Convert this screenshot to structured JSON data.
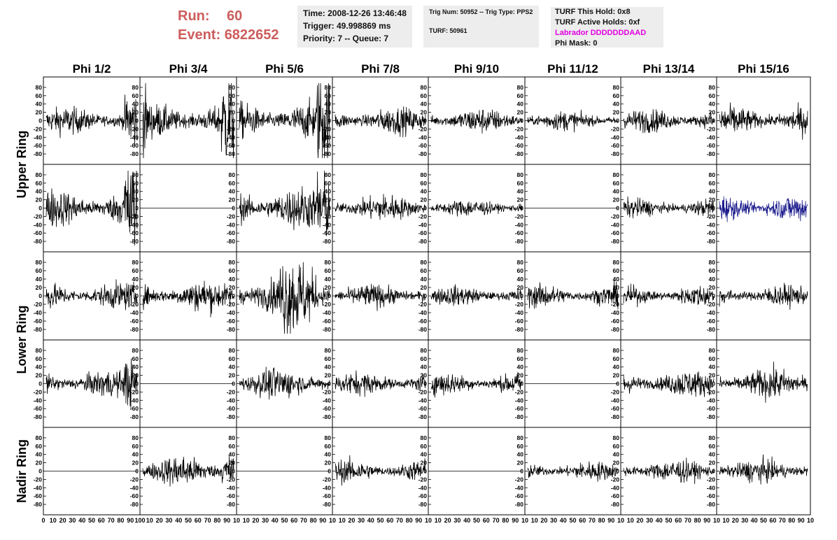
{
  "header": {
    "run_label": "Run:",
    "run_value": "60",
    "event_label": "Event:",
    "event_value": "6822652",
    "time": "Time: 2008-12-26 13:46:48",
    "trigger": "Trigger: 49.998869 ms",
    "priority": "Priority: 7 -- Queue: 7",
    "trig_num": "Trig Num: 50952 -- Trig Type: PPS2",
    "turf": "TURF: 50961",
    "turf_this_hold": "TURF This Hold: 0x8",
    "turf_active_holds": "TURF Active Holds: 0xf",
    "labrador": "Labrador DDDDDDDAAD",
    "phi_mask": "Phi Mask: 0"
  },
  "colors": {
    "run_text": "#cd5c5c",
    "labrador_text": "#e000e0",
    "trace": "#000000",
    "highlight_trace": "#1a1a8c",
    "info_bg": "#ededed"
  },
  "chart_data": {
    "type": "line",
    "columns": [
      "Phi 1/2",
      "Phi 3/4",
      "Phi 5/6",
      "Phi 7/8",
      "Phi 9/10",
      "Phi 11/12",
      "Phi 13/14",
      "Phi 15/16"
    ],
    "ring_labels": [
      "Upper Ring",
      "Lower Ring",
      "Nadir Ring"
    ],
    "ring_rows": [
      [
        0,
        1
      ],
      [
        2,
        3
      ],
      [
        4
      ]
    ],
    "xlim": [
      0,
      100
    ],
    "ylim": [
      -95,
      95
    ],
    "y_ticks": [
      80,
      60,
      40,
      20,
      0,
      -20,
      -40,
      -60,
      -80
    ],
    "x_ticks_first": [
      "0",
      "10",
      "20",
      "30",
      "40",
      "50",
      "60",
      "70",
      "80",
      "90",
      "100"
    ],
    "x_ticks_other": [
      "10",
      "20",
      "30",
      "40",
      "50",
      "60",
      "70",
      "80",
      "90",
      "10"
    ],
    "highlight_panel": {
      "row": 1,
      "col": 7
    },
    "panels_rms": [
      [
        14,
        18,
        20,
        14,
        13,
        10,
        12,
        15
      ],
      [
        20,
        0,
        22,
        14,
        9,
        0,
        10,
        14
      ],
      [
        14,
        16,
        22,
        12,
        10,
        12,
        11,
        11
      ],
      [
        14,
        0,
        16,
        12,
        12,
        0,
        14,
        16
      ],
      [
        0,
        16,
        0,
        12,
        0,
        10,
        12,
        12
      ]
    ],
    "panels_burst": [
      [
        "end",
        "both",
        "end",
        "none",
        "none",
        "none",
        "none",
        "none"
      ],
      [
        "end",
        "none",
        "end",
        "none",
        "none",
        "none",
        "none",
        "none"
      ],
      [
        "none",
        "none",
        "mid",
        "none",
        "none",
        "none",
        "none",
        "none"
      ],
      [
        "end",
        "none",
        "none",
        "none",
        "none",
        "none",
        "none",
        "none"
      ],
      [
        "none",
        "end",
        "none",
        "none",
        "none",
        "none",
        "none",
        "none"
      ]
    ]
  }
}
